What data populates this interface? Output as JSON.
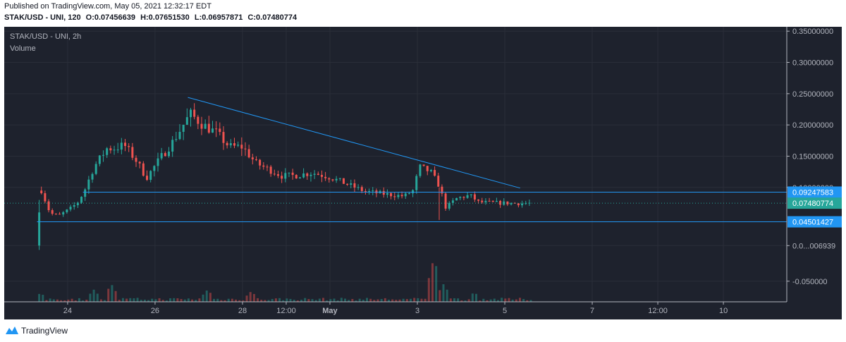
{
  "header": {
    "published": "Published on TradingView.com, May 05, 2021 12:32:17 EDT",
    "symbol_line": "STAK/USD - UNI, 120",
    "open": "O:0.07456639",
    "high": "H:0.07651530",
    "low": "L:0.06957871",
    "close": "C:0.07480774"
  },
  "legend": {
    "symbol": "STAK/USD - UNI, 2h",
    "volume": "Volume"
  },
  "footer": {
    "brand": "TradingView"
  },
  "colors": {
    "background": "#1e222d",
    "up": "#26a69a",
    "down": "#ef5350",
    "trendline": "#2196f3",
    "text": "#b2b5be"
  },
  "chart_data": {
    "type": "candlestick",
    "y_axis": {
      "ticks": [
        {
          "value": 0.35,
          "label": "0.35000000"
        },
        {
          "value": 0.3,
          "label": "0.30000000"
        },
        {
          "value": 0.25,
          "label": "0.25000000"
        },
        {
          "value": 0.2,
          "label": "0.20000000"
        },
        {
          "value": 0.15,
          "label": "0.15000000"
        },
        {
          "value": 0.1,
          "label": "0.10000000"
        },
        {
          "value": 0.006939,
          "label": "0.0...006939"
        },
        {
          "value": -0.05,
          "label": "-0.050000"
        }
      ],
      "range": [
        -0.083,
        0.357
      ]
    },
    "x_axis": {
      "ticks": [
        {
          "day": 24,
          "label": "24"
        },
        {
          "day": 26,
          "label": "26"
        },
        {
          "day": 28,
          "label": "28"
        },
        {
          "day": 29,
          "label": "12:00"
        },
        {
          "day": 30,
          "label": "May"
        },
        {
          "day": 32,
          "label": "3"
        },
        {
          "day": 34,
          "label": "5"
        },
        {
          "day": 36,
          "label": "7"
        },
        {
          "day": 37.5,
          "label": "12:00"
        },
        {
          "day": 39,
          "label": "10"
        }
      ],
      "range_days": [
        22.55,
        40.45
      ],
      "note": "days counted from April 1; May 1 = 31"
    },
    "price_labels": [
      {
        "value": 0.09247583,
        "label": "0.09247583",
        "color": "#2196f3"
      },
      {
        "value": 0.07480774,
        "label": "0.07480774",
        "color": "#26a69a"
      },
      {
        "value": 0.04501427,
        "label": "0.04501427",
        "color": "#2196f3"
      }
    ],
    "support_lines": [
      {
        "value": 0.0925,
        "from_day": 24.35
      },
      {
        "value": 0.045,
        "from_day": 23.3
      }
    ],
    "trendline": {
      "x1": 26.75,
      "y1": 0.244,
      "x2": 34.35,
      "y2": 0.099
    },
    "last_price": 0.07480774,
    "volume_ref": 0.00694,
    "segments": [
      [
        23.4,
        0.13,
        0.06
      ],
      [
        23.6,
        0.062,
        0.055
      ],
      [
        23.8,
        0.05,
        0.06
      ],
      [
        24.1,
        0.066,
        0.07
      ],
      [
        24.25,
        0.075,
        0.08
      ],
      [
        24.4,
        0.085,
        0.11
      ],
      [
        24.6,
        0.125,
        0.14
      ],
      [
        24.9,
        0.15,
        0.175
      ],
      [
        25.05,
        0.16,
        0.165
      ],
      [
        25.3,
        0.18,
        0.155
      ],
      [
        25.6,
        0.15,
        0.13
      ],
      [
        25.8,
        0.105,
        0.125
      ],
      [
        26.1,
        0.135,
        0.155
      ],
      [
        26.4,
        0.17,
        0.175
      ],
      [
        26.6,
        0.19,
        0.2
      ],
      [
        26.8,
        0.225,
        0.21
      ],
      [
        27.1,
        0.2,
        0.2
      ],
      [
        27.4,
        0.2,
        0.175
      ],
      [
        27.7,
        0.17,
        0.16
      ],
      [
        28.0,
        0.16,
        0.17
      ],
      [
        28.3,
        0.15,
        0.128
      ],
      [
        28.6,
        0.13,
        0.128
      ],
      [
        28.9,
        0.122,
        0.115
      ],
      [
        29.2,
        0.118,
        0.12
      ],
      [
        29.6,
        0.127,
        0.12
      ],
      [
        30.0,
        0.118,
        0.115
      ],
      [
        30.4,
        0.11,
        0.1
      ],
      [
        30.8,
        0.095,
        0.092
      ],
      [
        31.3,
        0.09,
        0.088
      ],
      [
        31.7,
        0.087,
        0.085
      ],
      [
        31.9,
        0.09,
        0.1
      ],
      [
        32.05,
        0.13,
        0.135
      ],
      [
        32.3,
        0.13,
        0.12
      ],
      [
        32.5,
        0.115,
        0.09
      ],
      [
        32.65,
        0.06,
        0.075
      ],
      [
        32.9,
        0.08,
        0.085
      ],
      [
        33.2,
        0.09,
        0.085
      ],
      [
        33.4,
        0.078,
        0.075
      ],
      [
        33.7,
        0.075,
        0.076
      ],
      [
        34.0,
        0.077,
        0.073
      ],
      [
        34.3,
        0.074,
        0.075
      ],
      [
        34.6,
        0.0745,
        0.0748
      ]
    ],
    "volume_peaks": [
      {
        "day": 23.38,
        "value": 0.0011
      },
      {
        "day": 24.6,
        "value": 0.0015
      },
      {
        "day": 25.0,
        "value": 0.0022
      },
      {
        "day": 27.2,
        "value": 0.0015
      },
      {
        "day": 28.2,
        "value": 0.0013
      },
      {
        "day": 32.38,
        "value": 0.0055
      },
      {
        "day": 32.6,
        "value": 0.0022
      },
      {
        "day": 33.3,
        "value": 0.0012
      }
    ]
  }
}
